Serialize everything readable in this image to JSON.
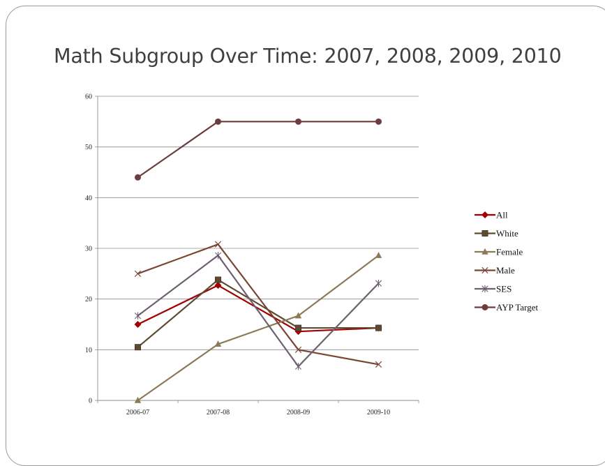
{
  "slide": {
    "title": "Math Subgroup Over Time: 2007, 2008, 2009, 2010"
  },
  "chart_data": {
    "type": "line",
    "title": "",
    "xlabel": "",
    "ylabel": "",
    "categories": [
      "2006-07",
      "2007-08",
      "2008-09",
      "2009-10"
    ],
    "ylim": [
      0,
      60
    ],
    "yticks": [
      0,
      10,
      20,
      30,
      40,
      50,
      60
    ],
    "grid": true,
    "legend": "right",
    "series": [
      {
        "name": "All",
        "values": [
          15,
          22.7,
          13.6,
          14.3
        ],
        "color": "#a00000",
        "marker": "diamond"
      },
      {
        "name": "White",
        "values": [
          10.5,
          23.8,
          14.3,
          14.3
        ],
        "color": "#5e4a33",
        "marker": "square"
      },
      {
        "name": "Female",
        "values": [
          0,
          11.1,
          16.7,
          28.6
        ],
        "color": "#8b7a55",
        "marker": "triangle"
      },
      {
        "name": "Male",
        "values": [
          25,
          30.8,
          10,
          7.1
        ],
        "color": "#7a4632",
        "marker": "x"
      },
      {
        "name": "SES",
        "values": [
          16.7,
          28.6,
          6.7,
          23.1
        ],
        "color": "#6e6070",
        "marker": "star"
      },
      {
        "name": "AYP Target",
        "values": [
          44,
          55,
          55,
          55
        ],
        "color": "#6e3c3c",
        "marker": "circle"
      }
    ]
  }
}
